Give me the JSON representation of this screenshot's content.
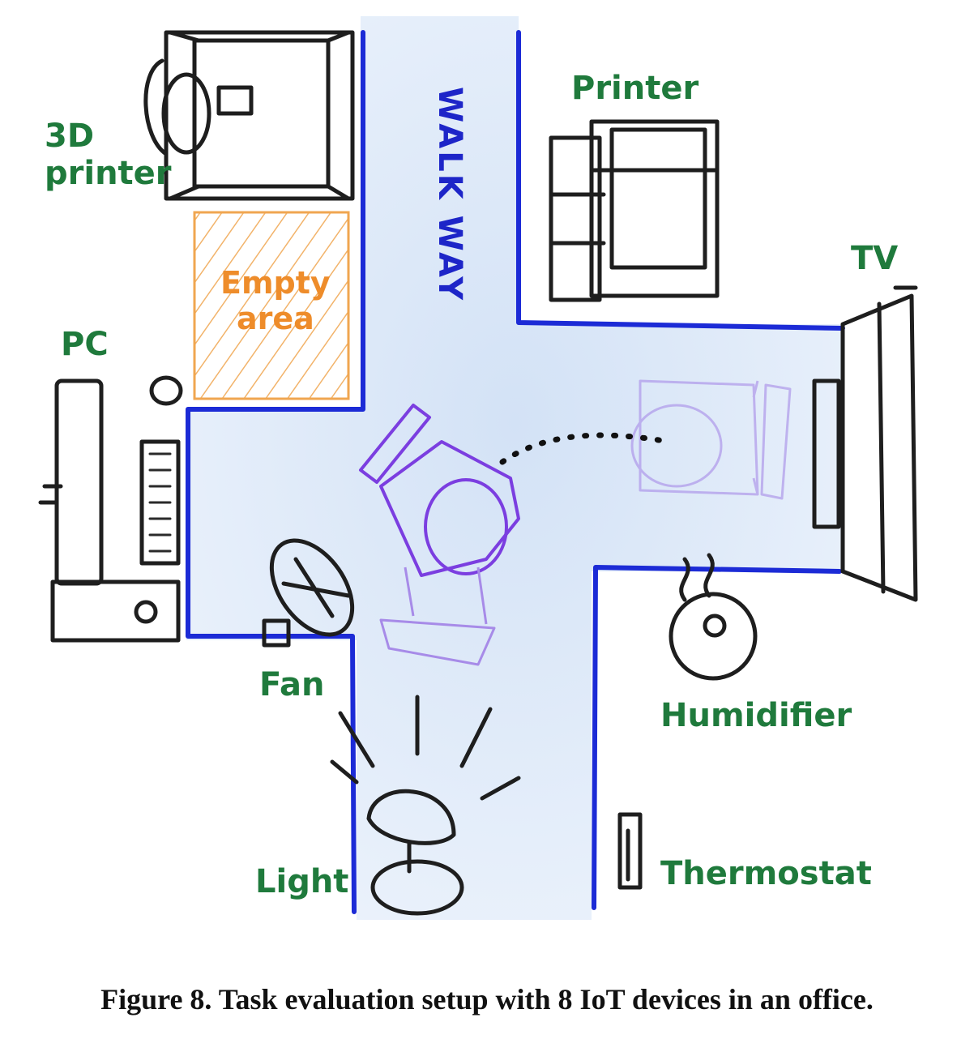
{
  "labels": {
    "printer_3d": "3D\nprinter",
    "printer": "Printer",
    "tv": "TV",
    "pc": "PC",
    "empty_area": "Empty\narea",
    "walk_way": "WALK WAY",
    "fan": "Fan",
    "humidifier": "Humidifier",
    "light": "Light",
    "thermostat": "Thermostat"
  },
  "caption": "Figure 8. Task evaluation setup with 8 IoT devices in an office.",
  "colors": {
    "device_label": "#1f7a3c",
    "empty_area_label": "#ee8c2a",
    "walkway_label": "#1d25c8",
    "walls": "#1c2bd6",
    "floor": "#dce8f7",
    "user": "#7b3ee0"
  }
}
